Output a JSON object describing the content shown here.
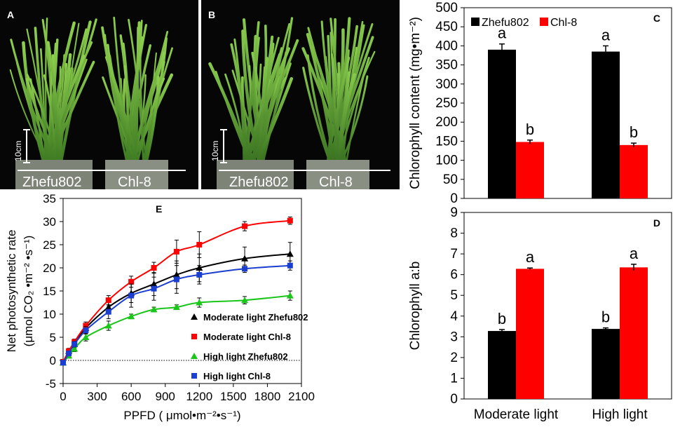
{
  "panels": {
    "A": {
      "letter": "A",
      "scale_label": "10cm",
      "labels": [
        "Zhefu802",
        "Chl-8"
      ]
    },
    "B": {
      "letter": "B",
      "scale_label": "10cm",
      "labels": [
        "Zhefu802",
        "Chl-8"
      ]
    }
  },
  "colors": {
    "black": "#000000",
    "red": "#ff0000",
    "green": "#19c619",
    "blue": "#1a3fd0"
  },
  "chart_data": [
    {
      "id": "C",
      "type": "bar",
      "panel_letter": "C",
      "ylabel": "Chlorophyll content (mg•m⁻²)",
      "ylim": [
        0,
        500
      ],
      "yticks": [
        0,
        50,
        100,
        150,
        200,
        250,
        300,
        350,
        400,
        450,
        500
      ],
      "categories": [
        "Moderate light",
        "High light"
      ],
      "series": [
        {
          "name": "Zhefu802",
          "color": "#000000",
          "values": [
            390,
            385
          ],
          "errors": [
            15,
            15
          ],
          "letters": [
            "a",
            "a"
          ]
        },
        {
          "name": "Chl-8",
          "color": "#ff0000",
          "values": [
            148,
            140
          ],
          "errors": [
            5,
            5
          ],
          "letters": [
            "b",
            "b"
          ]
        }
      ],
      "legend": "top"
    },
    {
      "id": "D",
      "type": "bar",
      "panel_letter": "D",
      "ylabel": "Chlorophyll a:b",
      "ylim": [
        0,
        9
      ],
      "yticks": [
        0,
        1,
        2,
        3,
        4,
        5,
        6,
        7,
        8,
        9
      ],
      "categories": [
        "Moderate light",
        "High light"
      ],
      "series": [
        {
          "name": "Zhefu802",
          "color": "#000000",
          "values": [
            3.28,
            3.38
          ],
          "errors": [
            0.07,
            0.05
          ],
          "letters": [
            "b",
            "b"
          ]
        },
        {
          "name": "Chl-8",
          "color": "#ff0000",
          "values": [
            6.28,
            6.35
          ],
          "errors": [
            0.04,
            0.15
          ],
          "letters": [
            "a",
            "a"
          ]
        }
      ]
    },
    {
      "id": "E",
      "type": "line",
      "panel_letter": "E",
      "xlabel": "PPFD ( μmol•m⁻²•s⁻¹)",
      "ylabel_line1": "Net photosynthetic rate",
      "ylabel_line2": "(μmol CO₂ •m⁻² •s⁻¹)",
      "xlim": [
        0,
        2100
      ],
      "ylim": [
        -5,
        35
      ],
      "xticks": [
        0,
        300,
        600,
        900,
        1200,
        1500,
        1800,
        2100
      ],
      "yticks": [
        -5,
        0,
        5,
        10,
        15,
        20,
        25,
        30,
        35
      ],
      "x": [
        0,
        50,
        100,
        200,
        400,
        600,
        800,
        1000,
        1200,
        1600,
        2000
      ],
      "series": [
        {
          "name": "Moderate light Zhefu802",
          "marker": "triangle",
          "color": "#000000",
          "values": [
            -0.5,
            2.0,
            3.5,
            7.0,
            11.5,
            14.5,
            16.5,
            18.5,
            20.0,
            22.0,
            23.0
          ],
          "errors": [
            0.4,
            0.6,
            0.8,
            1.0,
            1.5,
            2.0,
            2.5,
            3.0,
            3.0,
            2.5,
            2.5
          ]
        },
        {
          "name": "Moderate light Chl-8",
          "marker": "square",
          "color": "#ff0000",
          "values": [
            -0.3,
            2.0,
            4.0,
            7.5,
            13.0,
            17.0,
            20.0,
            23.5,
            25.0,
            29.0,
            30.2
          ],
          "errors": [
            0.3,
            0.5,
            0.6,
            0.8,
            1.0,
            1.2,
            1.2,
            2.5,
            2.8,
            1.0,
            0.8
          ]
        },
        {
          "name": "High light Zhefu802",
          "marker": "triangle",
          "color": "#19c619",
          "values": [
            -0.5,
            1.0,
            2.5,
            5.0,
            7.5,
            9.5,
            11.0,
            11.5,
            12.5,
            13.0,
            14.0
          ],
          "errors": [
            0.3,
            0.5,
            0.6,
            0.8,
            1.0,
            0.5,
            0.5,
            0.5,
            1.0,
            0.8,
            1.0
          ]
        },
        {
          "name": "High light Chl-8",
          "marker": "square",
          "color": "#1a3fd0",
          "values": [
            -0.5,
            1.5,
            3.5,
            6.5,
            10.5,
            14.0,
            15.5,
            17.5,
            18.5,
            19.8,
            20.5
          ],
          "errors": [
            0.3,
            0.5,
            0.6,
            0.8,
            1.5,
            2.5,
            2.5,
            3.0,
            2.0,
            0.8,
            1.0
          ]
        }
      ],
      "zero_line": "dotted",
      "legend": "center-right"
    }
  ]
}
